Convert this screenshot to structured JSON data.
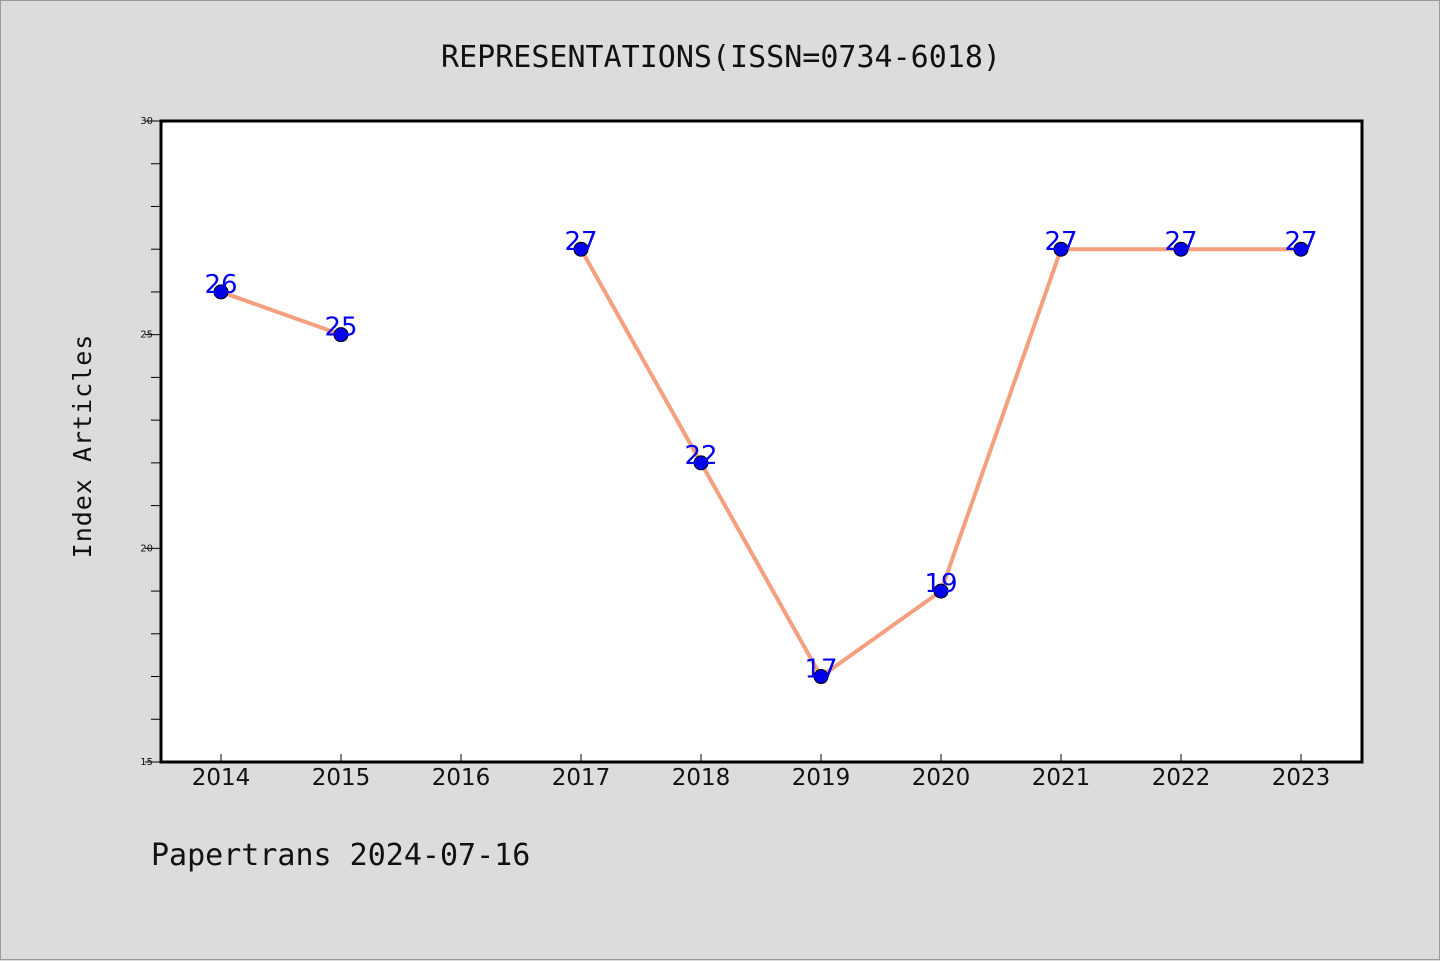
{
  "chart_data": {
    "type": "line",
    "title": "REPRESENTATIONS(ISSN=0734-6018)",
    "ylabel": "Index Articles",
    "xlabel": "",
    "categories": [
      "2014",
      "2015",
      "2016",
      "2017",
      "2018",
      "2019",
      "2020",
      "2021",
      "2022",
      "2023"
    ],
    "series": [
      {
        "values": [
          26,
          25,
          null,
          27,
          22,
          17,
          19,
          27,
          27,
          27
        ]
      }
    ],
    "data_labels": [
      "26",
      "25",
      "",
      "27",
      "22",
      "17",
      "19",
      "27",
      "27",
      "27"
    ],
    "ylim": [
      15,
      30
    ],
    "yticks": [
      15,
      20,
      25,
      30
    ],
    "ytick_labels": [
      "15",
      "20",
      "25",
      "30"
    ],
    "grid": false,
    "legend": "none",
    "colors": {
      "background": "#dcdcdc",
      "plot_background": "#ffffff",
      "line": "#f4a07f",
      "marker": "#0000ee",
      "data_label": "#0000ee"
    }
  },
  "footer": "Papertrans 2024-07-16"
}
